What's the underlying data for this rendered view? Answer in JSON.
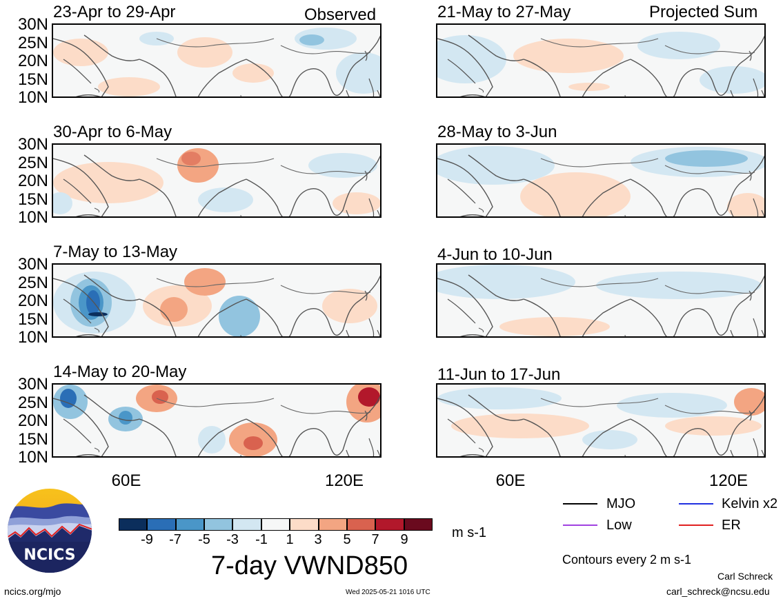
{
  "left_tag": "Observed",
  "right_tag": "Projected Sum",
  "panels_left": [
    {
      "title": "23-Apr to 29-Apr"
    },
    {
      "title": "30-Apr to 6-May"
    },
    {
      "title": "7-May to 13-May"
    },
    {
      "title": "14-May to 20-May"
    }
  ],
  "panels_right": [
    {
      "title": "21-May to 27-May"
    },
    {
      "title": "28-May to 3-Jun"
    },
    {
      "title": "4-Jun to 10-Jun"
    },
    {
      "title": "11-Jun to 17-Jun"
    }
  ],
  "lat_labels": [
    "30N",
    "25N",
    "20N",
    "15N",
    "10N"
  ],
  "lon_labels": [
    "60E",
    "120E"
  ],
  "colorbar": {
    "colors": [
      "#0b2e5c",
      "#2a6eb6",
      "#4a96c8",
      "#92c4df",
      "#d3e7f2",
      "#f6f7f7",
      "#fcdcc8",
      "#f3a582",
      "#d9624f",
      "#b2182b",
      "#6a0a1e"
    ],
    "labels": [
      "-9",
      "-7",
      "-5",
      "-3",
      "-1",
      "1",
      "3",
      "5",
      "7",
      "9"
    ],
    "units": "m s-1"
  },
  "main_title": "7-day VWND850",
  "legend": [
    {
      "label": "MJO",
      "color": "#000000"
    },
    {
      "label": "Kelvin x2",
      "color": "#1f2fe0"
    },
    {
      "label": "Low",
      "color": "#a040e0"
    },
    {
      "label": "ER",
      "color": "#e02020"
    }
  ],
  "contour_note": "Contours every 2 m s-1",
  "logo_text": "NCICS",
  "footer": {
    "left": "ncics.org/mjo",
    "center": "Wed 2025-05-21 1016 UTC",
    "author": "Carl Schreck",
    "email": "carl_schreck@ncsu.edu"
  }
}
